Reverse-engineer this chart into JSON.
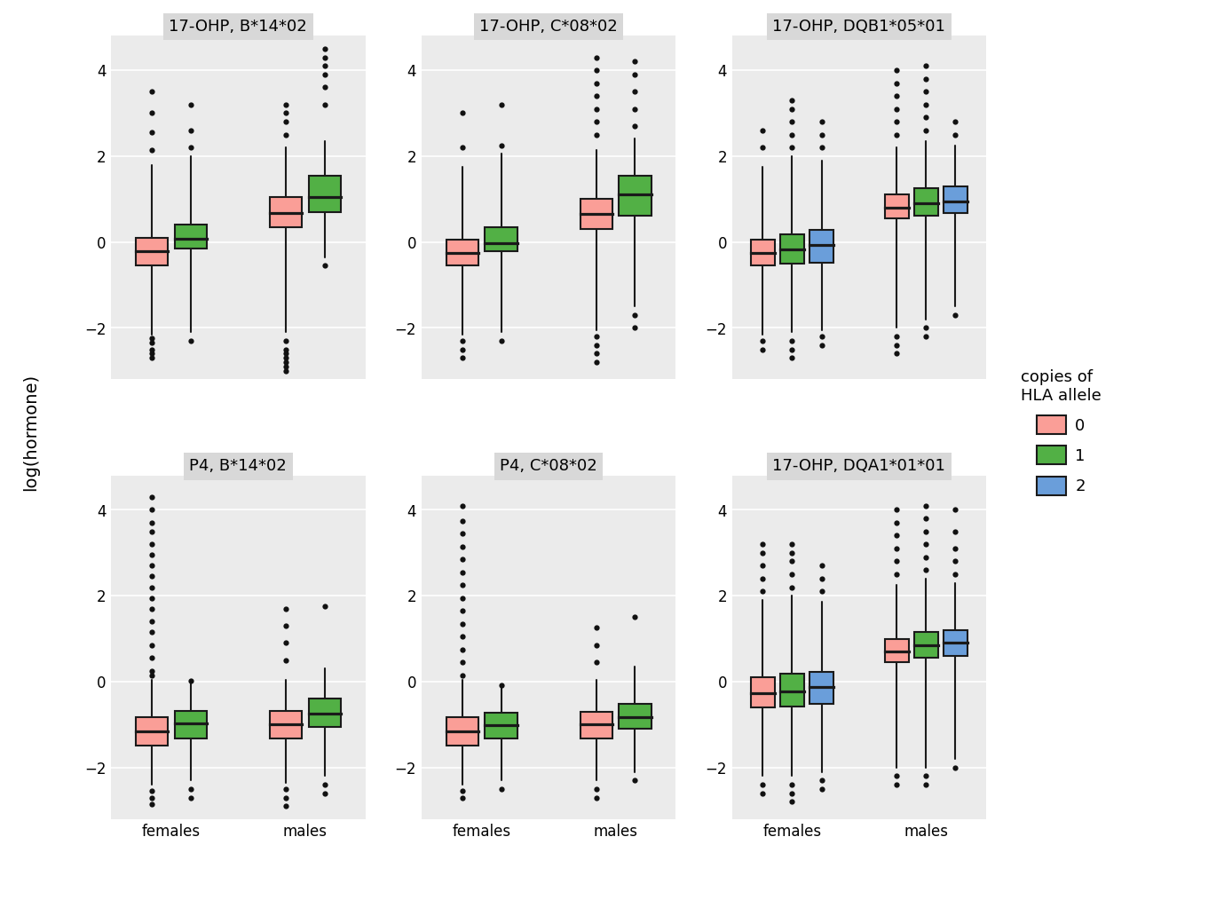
{
  "panels": [
    {
      "title": "17-OHP, B*14*02",
      "row": 0,
      "col": 0,
      "boxes": [
        {
          "group": "females",
          "copy": 0,
          "color": "#FA9E97",
          "q1": -0.55,
          "median": -0.22,
          "q3": 0.1,
          "whislo": -2.15,
          "whishi": 1.8,
          "fliers": [
            -2.25,
            -2.35,
            -2.5,
            -2.6,
            -2.7,
            2.15,
            2.55,
            3.0,
            3.5
          ]
        },
        {
          "group": "females",
          "copy": 1,
          "color": "#52B045",
          "q1": -0.15,
          "median": 0.08,
          "q3": 0.4,
          "whislo": -2.1,
          "whishi": 2.0,
          "fliers": [
            -2.3,
            2.2,
            2.6,
            3.2
          ]
        },
        {
          "group": "males",
          "copy": 0,
          "color": "#FA9E97",
          "q1": 0.35,
          "median": 0.68,
          "q3": 1.05,
          "whislo": -2.1,
          "whishi": 2.2,
          "fliers": [
            -2.3,
            -2.5,
            -2.6,
            -2.7,
            -2.8,
            -2.9,
            -3.0,
            2.5,
            2.8,
            3.0,
            3.2
          ]
        },
        {
          "group": "males",
          "copy": 1,
          "color": "#52B045",
          "q1": 0.7,
          "median": 1.05,
          "q3": 1.55,
          "whislo": -0.35,
          "whishi": 2.35,
          "fliers": [
            -0.55,
            3.2,
            3.6,
            3.9,
            4.1,
            4.3,
            4.5
          ]
        }
      ]
    },
    {
      "title": "17-OHP, C*08*02",
      "row": 0,
      "col": 1,
      "boxes": [
        {
          "group": "females",
          "copy": 0,
          "color": "#FA9E97",
          "q1": -0.55,
          "median": -0.25,
          "q3": 0.05,
          "whislo": -2.15,
          "whishi": 1.75,
          "fliers": [
            -2.3,
            -2.5,
            -2.7,
            2.2,
            3.0
          ]
        },
        {
          "group": "females",
          "copy": 1,
          "color": "#52B045",
          "q1": -0.22,
          "median": -0.02,
          "q3": 0.35,
          "whislo": -2.1,
          "whishi": 2.05,
          "fliers": [
            -2.3,
            2.25,
            3.2
          ]
        },
        {
          "group": "males",
          "copy": 0,
          "color": "#FA9E97",
          "q1": 0.3,
          "median": 0.65,
          "q3": 1.0,
          "whislo": -2.05,
          "whishi": 2.15,
          "fliers": [
            -2.2,
            -2.4,
            -2.6,
            -2.8,
            2.5,
            2.8,
            3.1,
            3.4,
            3.7,
            4.0,
            4.3
          ]
        },
        {
          "group": "males",
          "copy": 1,
          "color": "#52B045",
          "q1": 0.62,
          "median": 1.1,
          "q3": 1.55,
          "whislo": -1.5,
          "whishi": 2.4,
          "fliers": [
            -1.7,
            -2.0,
            2.7,
            3.1,
            3.5,
            3.9,
            4.2
          ]
        }
      ]
    },
    {
      "title": "17-OHP, DQB1*05*01",
      "row": 0,
      "col": 2,
      "boxes": [
        {
          "group": "females",
          "copy": 0,
          "color": "#FA9E97",
          "q1": -0.55,
          "median": -0.25,
          "q3": 0.05,
          "whislo": -2.15,
          "whishi": 1.75,
          "fliers": [
            -2.3,
            -2.5,
            2.2,
            2.6
          ]
        },
        {
          "group": "females",
          "copy": 1,
          "color": "#52B045",
          "q1": -0.5,
          "median": -0.18,
          "q3": 0.18,
          "whislo": -2.1,
          "whishi": 2.0,
          "fliers": [
            -2.3,
            -2.5,
            -2.7,
            2.2,
            2.5,
            2.8,
            3.1,
            3.3
          ]
        },
        {
          "group": "females",
          "copy": 2,
          "color": "#6A9EDA",
          "q1": -0.48,
          "median": -0.08,
          "q3": 0.28,
          "whislo": -2.05,
          "whishi": 1.9,
          "fliers": [
            -2.2,
            -2.4,
            2.2,
            2.5,
            2.8
          ]
        },
        {
          "group": "males",
          "copy": 0,
          "color": "#FA9E97",
          "q1": 0.55,
          "median": 0.8,
          "q3": 1.1,
          "whislo": -2.0,
          "whishi": 2.2,
          "fliers": [
            -2.2,
            -2.4,
            -2.6,
            2.5,
            2.8,
            3.1,
            3.4,
            3.7,
            4.0
          ]
        },
        {
          "group": "males",
          "copy": 1,
          "color": "#52B045",
          "q1": 0.62,
          "median": 0.9,
          "q3": 1.25,
          "whislo": -1.8,
          "whishi": 2.35,
          "fliers": [
            -2.0,
            -2.2,
            2.6,
            2.9,
            3.2,
            3.5,
            3.8,
            4.1
          ]
        },
        {
          "group": "males",
          "copy": 2,
          "color": "#6A9EDA",
          "q1": 0.68,
          "median": 0.95,
          "q3": 1.3,
          "whislo": -1.5,
          "whishi": 2.25,
          "fliers": [
            -1.7,
            2.5,
            2.8
          ]
        }
      ]
    },
    {
      "title": "P4, B*14*02",
      "row": 1,
      "col": 0,
      "boxes": [
        {
          "group": "females",
          "copy": 0,
          "color": "#FA9E97",
          "q1": -1.5,
          "median": -1.15,
          "q3": -0.82,
          "whislo": -2.4,
          "whishi": 0.05,
          "fliers": [
            -2.55,
            -2.7,
            -2.85,
            0.15,
            0.25,
            0.55,
            0.85,
            1.15,
            1.4,
            1.7,
            1.95,
            2.2,
            2.45,
            2.7,
            2.95,
            3.2,
            3.5,
            3.7,
            4.0,
            4.3
          ]
        },
        {
          "group": "females",
          "copy": 1,
          "color": "#52B045",
          "q1": -1.32,
          "median": -0.98,
          "q3": -0.68,
          "whislo": -2.3,
          "whishi": -0.05,
          "fliers": [
            -2.5,
            -2.7,
            0.02
          ]
        },
        {
          "group": "males",
          "copy": 0,
          "color": "#FA9E97",
          "q1": -1.32,
          "median": -1.0,
          "q3": -0.68,
          "whislo": -2.35,
          "whishi": 0.05,
          "fliers": [
            -2.5,
            -2.7,
            -2.9,
            0.5,
            0.9,
            1.3,
            1.7
          ]
        },
        {
          "group": "males",
          "copy": 1,
          "color": "#52B045",
          "q1": -1.05,
          "median": -0.75,
          "q3": -0.4,
          "whislo": -2.2,
          "whishi": 0.3,
          "fliers": [
            -2.4,
            -2.6,
            1.75
          ]
        }
      ]
    },
    {
      "title": "P4, C*08*02",
      "row": 1,
      "col": 1,
      "boxes": [
        {
          "group": "females",
          "copy": 0,
          "color": "#FA9E97",
          "q1": -1.5,
          "median": -1.15,
          "q3": -0.82,
          "whislo": -2.4,
          "whishi": 0.05,
          "fliers": [
            -2.55,
            -2.7,
            0.15,
            0.45,
            0.75,
            1.05,
            1.35,
            1.65,
            1.95,
            2.25,
            2.55,
            2.85,
            3.15,
            3.45,
            3.75,
            4.1
          ]
        },
        {
          "group": "females",
          "copy": 1,
          "color": "#52B045",
          "q1": -1.32,
          "median": -1.02,
          "q3": -0.72,
          "whislo": -2.3,
          "whishi": -0.1,
          "fliers": [
            -2.5,
            -0.08
          ]
        },
        {
          "group": "males",
          "copy": 0,
          "color": "#FA9E97",
          "q1": -1.32,
          "median": -1.0,
          "q3": -0.7,
          "whislo": -2.3,
          "whishi": 0.05,
          "fliers": [
            -2.5,
            -2.7,
            0.45,
            0.85,
            1.25
          ]
        },
        {
          "group": "males",
          "copy": 1,
          "color": "#52B045",
          "q1": -1.1,
          "median": -0.82,
          "q3": -0.52,
          "whislo": -2.1,
          "whishi": 0.35,
          "fliers": [
            -2.3,
            1.5
          ]
        }
      ]
    },
    {
      "title": "17-OHP, DQA1*01*01",
      "row": 1,
      "col": 2,
      "boxes": [
        {
          "group": "females",
          "copy": 0,
          "color": "#FA9E97",
          "q1": -0.6,
          "median": -0.28,
          "q3": 0.1,
          "whislo": -2.2,
          "whishi": 1.9,
          "fliers": [
            -2.4,
            -2.6,
            2.1,
            2.4,
            2.7,
            3.0,
            3.2
          ]
        },
        {
          "group": "females",
          "copy": 1,
          "color": "#52B045",
          "q1": -0.58,
          "median": -0.22,
          "q3": 0.18,
          "whislo": -2.2,
          "whishi": 2.0,
          "fliers": [
            -2.4,
            -2.6,
            -2.8,
            2.2,
            2.5,
            2.8,
            3.0,
            3.2
          ]
        },
        {
          "group": "females",
          "copy": 2,
          "color": "#6A9EDA",
          "q1": -0.52,
          "median": -0.12,
          "q3": 0.22,
          "whislo": -2.1,
          "whishi": 1.85,
          "fliers": [
            -2.3,
            -2.5,
            2.1,
            2.4,
            2.7
          ]
        },
        {
          "group": "males",
          "copy": 0,
          "color": "#FA9E97",
          "q1": 0.45,
          "median": 0.7,
          "q3": 1.0,
          "whislo": -2.0,
          "whishi": 2.25,
          "fliers": [
            -2.2,
            -2.4,
            2.5,
            2.8,
            3.1,
            3.4,
            3.7,
            4.0
          ]
        },
        {
          "group": "males",
          "copy": 1,
          "color": "#52B045",
          "q1": 0.55,
          "median": 0.85,
          "q3": 1.15,
          "whislo": -2.0,
          "whishi": 2.4,
          "fliers": [
            -2.2,
            -2.4,
            2.6,
            2.9,
            3.2,
            3.5,
            3.8,
            4.1
          ]
        },
        {
          "group": "males",
          "copy": 2,
          "color": "#6A9EDA",
          "q1": 0.6,
          "median": 0.9,
          "q3": 1.2,
          "whislo": -1.8,
          "whishi": 2.3,
          "fliers": [
            -2.0,
            2.5,
            2.8,
            3.1,
            3.5,
            4.0
          ]
        }
      ]
    }
  ],
  "ylim": [
    -3.2,
    4.8
  ],
  "yticks": [
    -2,
    0,
    2,
    4
  ],
  "ylabel": "log(hormone)",
  "legend_title": "copies of\nHLA allele",
  "legend_items": [
    {
      "label": "0",
      "color": "#FA9E97"
    },
    {
      "label": "1",
      "color": "#52B045"
    },
    {
      "label": "2",
      "color": "#6A9EDA"
    }
  ],
  "panel_bg": "#EBEBEB",
  "fig_bg": "#FFFFFF",
  "grid_color": "#FFFFFF",
  "title_bg": "#D8D8D8"
}
